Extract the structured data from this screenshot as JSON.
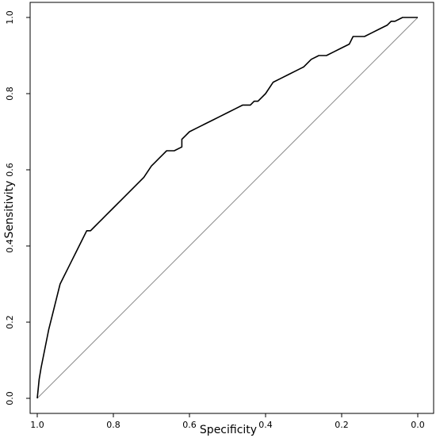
{
  "chart_data": {
    "type": "line",
    "title": "",
    "xlabel": "Specificity",
    "ylabel": "Sensitivity",
    "xlim": [
      1.0,
      0.0
    ],
    "ylim": [
      0.0,
      1.0
    ],
    "x_ticks": [
      "1.0",
      "0.8",
      "0.6",
      "0.4",
      "0.2",
      "0.0"
    ],
    "y_ticks": [
      "0.0",
      "0.2",
      "0.4",
      "0.6",
      "0.8",
      "1.0"
    ],
    "grid": false,
    "legend": "none",
    "colors": {
      "curve": "#000000",
      "reference": "#8c8c8c",
      "frame": "#000000"
    },
    "reference_line": {
      "x": [
        1.0,
        0.0
      ],
      "y": [
        0.0,
        1.0
      ]
    },
    "series": [
      {
        "x": [
          1.0,
          0.995,
          0.99,
          0.98,
          0.97,
          0.96,
          0.95,
          0.94,
          0.93,
          0.92,
          0.91,
          0.9,
          0.89,
          0.88,
          0.87,
          0.86,
          0.85,
          0.84,
          0.83,
          0.82,
          0.8,
          0.78,
          0.76,
          0.74,
          0.72,
          0.7,
          0.69,
          0.68,
          0.67,
          0.66,
          0.64,
          0.62,
          0.62,
          0.61,
          0.6,
          0.58,
          0.56,
          0.54,
          0.52,
          0.5,
          0.48,
          0.46,
          0.44,
          0.43,
          0.42,
          0.41,
          0.4,
          0.38,
          0.36,
          0.34,
          0.32,
          0.3,
          0.28,
          0.26,
          0.24,
          0.22,
          0.2,
          0.18,
          0.17,
          0.16,
          0.14,
          0.12,
          0.1,
          0.08,
          0.07,
          0.06,
          0.04,
          0.02,
          0.0
        ],
        "y": [
          0.0,
          0.05,
          0.08,
          0.13,
          0.18,
          0.22,
          0.26,
          0.3,
          0.32,
          0.34,
          0.36,
          0.38,
          0.4,
          0.42,
          0.44,
          0.44,
          0.45,
          0.46,
          0.47,
          0.48,
          0.5,
          0.52,
          0.54,
          0.56,
          0.58,
          0.61,
          0.62,
          0.63,
          0.64,
          0.65,
          0.65,
          0.66,
          0.68,
          0.69,
          0.7,
          0.71,
          0.72,
          0.73,
          0.74,
          0.75,
          0.76,
          0.77,
          0.77,
          0.78,
          0.78,
          0.79,
          0.8,
          0.83,
          0.84,
          0.85,
          0.86,
          0.87,
          0.89,
          0.9,
          0.9,
          0.91,
          0.92,
          0.93,
          0.95,
          0.95,
          0.95,
          0.96,
          0.97,
          0.98,
          0.99,
          0.99,
          1.0,
          1.0,
          1.0
        ]
      }
    ]
  }
}
